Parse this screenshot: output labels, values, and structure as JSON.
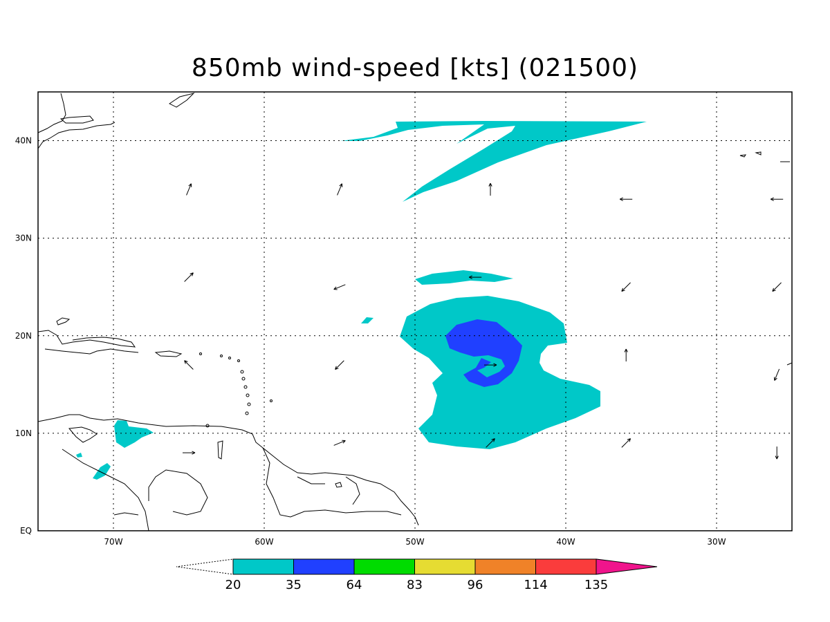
{
  "title": "850mb wind-speed [kts] (021500)",
  "axes": {
    "lon_ticks": [
      "70W",
      "60W",
      "50W",
      "40W",
      "30W"
    ],
    "lat_ticks": [
      "EQ",
      "10N",
      "20N",
      "30N",
      "40N"
    ]
  },
  "colorbar": {
    "levels": [
      "20",
      "35",
      "64",
      "83",
      "96",
      "114",
      "135"
    ],
    "colors": [
      "#00c8c8",
      "#2040ff",
      "#00dc00",
      "#e6dc32",
      "#f08228",
      "#fa3c3c",
      "#f0148c"
    ]
  },
  "wind_vectors": [
    {
      "lon": -65,
      "lat": 35,
      "dir": "NNE"
    },
    {
      "lon": -55,
      "lat": 35,
      "dir": "NNE"
    },
    {
      "lon": -45,
      "lat": 35,
      "dir": "N"
    },
    {
      "lon": -36,
      "lat": 34,
      "dir": "W"
    },
    {
      "lon": -26,
      "lat": 34,
      "dir": "W"
    },
    {
      "lon": -65,
      "lat": 26,
      "dir": "NE"
    },
    {
      "lon": -55,
      "lat": 25,
      "dir": "WSW"
    },
    {
      "lon": -46,
      "lat": 26,
      "dir": "W"
    },
    {
      "lon": -36,
      "lat": 25,
      "dir": "SW"
    },
    {
      "lon": -26,
      "lat": 25,
      "dir": "SW"
    },
    {
      "lon": -65,
      "lat": 17,
      "dir": "NW"
    },
    {
      "lon": -55,
      "lat": 17,
      "dir": "SW"
    },
    {
      "lon": -45,
      "lat": 17,
      "dir": "E"
    },
    {
      "lon": -36,
      "lat": 18,
      "dir": "N"
    },
    {
      "lon": -26,
      "lat": 16,
      "dir": "SSW"
    },
    {
      "lon": -65,
      "lat": 8,
      "dir": "E"
    },
    {
      "lon": -55,
      "lat": 9,
      "dir": "ENE"
    },
    {
      "lon": -45,
      "lat": 9,
      "dir": "NE"
    },
    {
      "lon": -36,
      "lat": 9,
      "dir": "NE"
    },
    {
      "lon": -26,
      "lat": 8,
      "dir": "S"
    }
  ]
}
